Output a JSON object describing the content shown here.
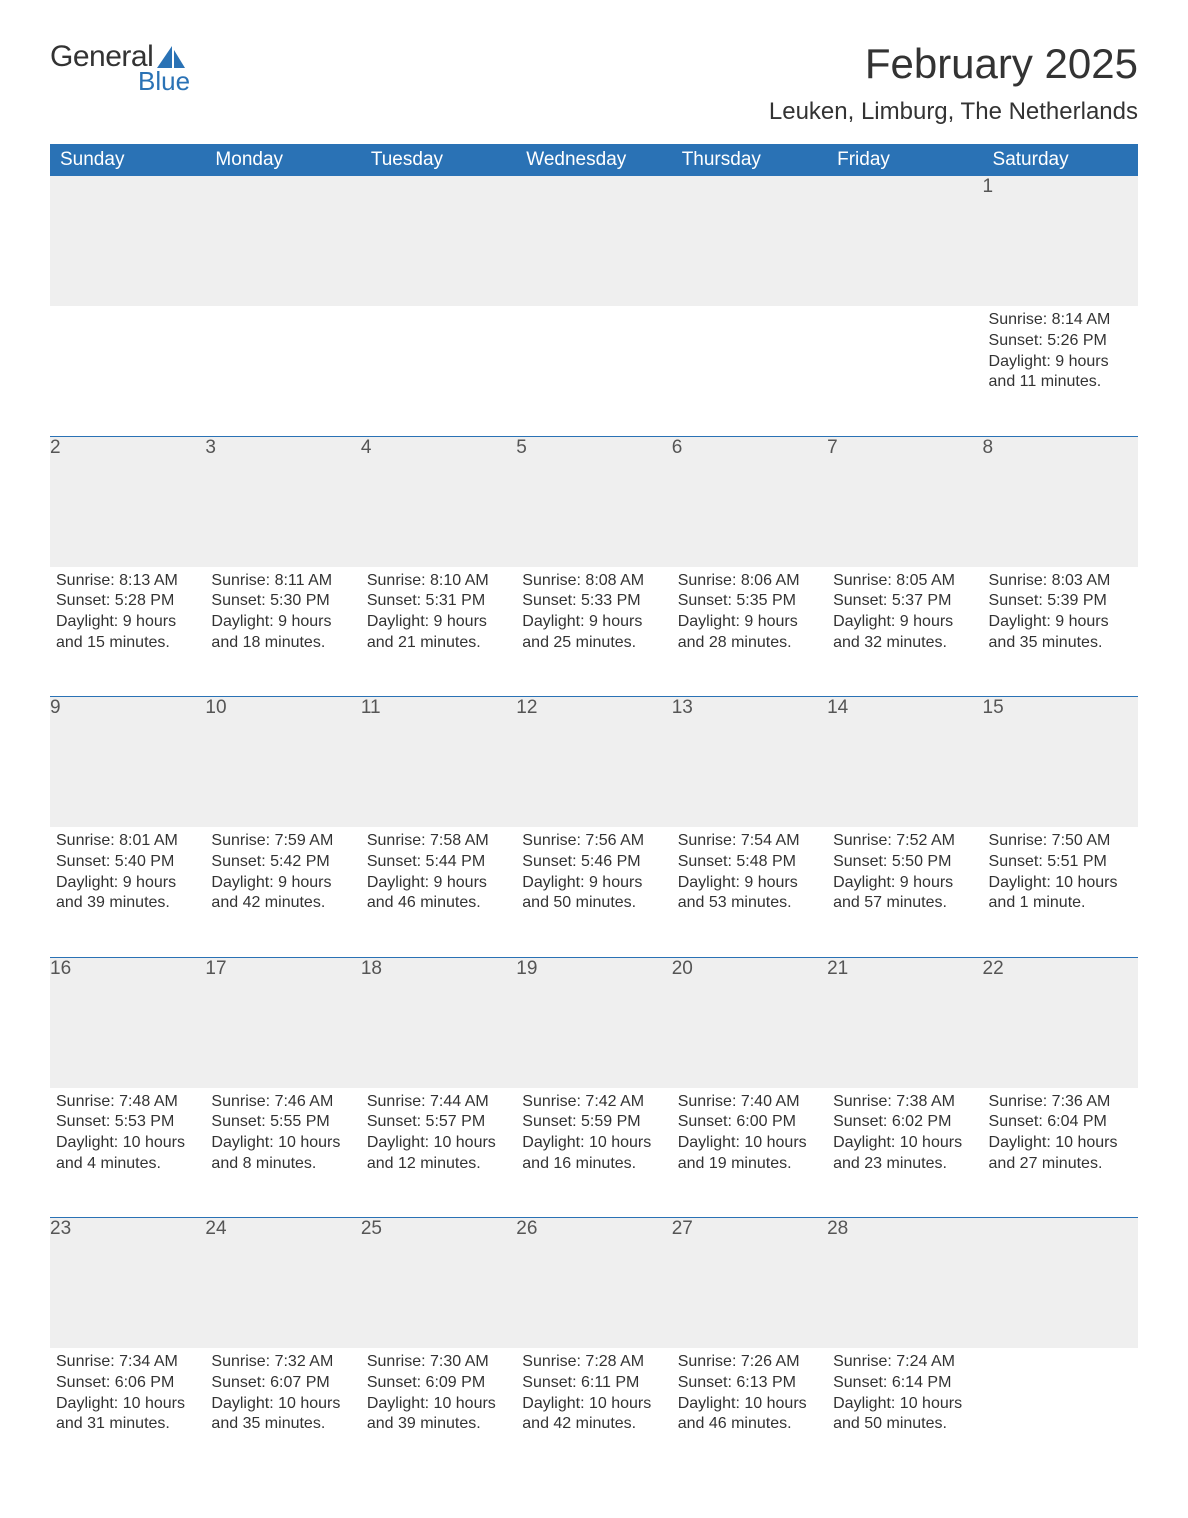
{
  "logo": {
    "text_general": "General",
    "text_blue": "Blue",
    "sail_color": "#2a72b5"
  },
  "title": "February 2025",
  "location": "Leuken, Limburg, The Netherlands",
  "colors": {
    "header_bg": "#2a72b5",
    "header_text": "#ffffff",
    "daynum_bg": "#efefef",
    "text": "#333333",
    "rule": "#2a72b5",
    "page_bg": "#ffffff"
  },
  "weekdays": [
    "Sunday",
    "Monday",
    "Tuesday",
    "Wednesday",
    "Thursday",
    "Friday",
    "Saturday"
  ],
  "first_weekday_index": 6,
  "days": [
    {
      "n": 1,
      "sunrise": "8:14 AM",
      "sunset": "5:26 PM",
      "daylight": "9 hours and 11 minutes."
    },
    {
      "n": 2,
      "sunrise": "8:13 AM",
      "sunset": "5:28 PM",
      "daylight": "9 hours and 15 minutes."
    },
    {
      "n": 3,
      "sunrise": "8:11 AM",
      "sunset": "5:30 PM",
      "daylight": "9 hours and 18 minutes."
    },
    {
      "n": 4,
      "sunrise": "8:10 AM",
      "sunset": "5:31 PM",
      "daylight": "9 hours and 21 minutes."
    },
    {
      "n": 5,
      "sunrise": "8:08 AM",
      "sunset": "5:33 PM",
      "daylight": "9 hours and 25 minutes."
    },
    {
      "n": 6,
      "sunrise": "8:06 AM",
      "sunset": "5:35 PM",
      "daylight": "9 hours and 28 minutes."
    },
    {
      "n": 7,
      "sunrise": "8:05 AM",
      "sunset": "5:37 PM",
      "daylight": "9 hours and 32 minutes."
    },
    {
      "n": 8,
      "sunrise": "8:03 AM",
      "sunset": "5:39 PM",
      "daylight": "9 hours and 35 minutes."
    },
    {
      "n": 9,
      "sunrise": "8:01 AM",
      "sunset": "5:40 PM",
      "daylight": "9 hours and 39 minutes."
    },
    {
      "n": 10,
      "sunrise": "7:59 AM",
      "sunset": "5:42 PM",
      "daylight": "9 hours and 42 minutes."
    },
    {
      "n": 11,
      "sunrise": "7:58 AM",
      "sunset": "5:44 PM",
      "daylight": "9 hours and 46 minutes."
    },
    {
      "n": 12,
      "sunrise": "7:56 AM",
      "sunset": "5:46 PM",
      "daylight": "9 hours and 50 minutes."
    },
    {
      "n": 13,
      "sunrise": "7:54 AM",
      "sunset": "5:48 PM",
      "daylight": "9 hours and 53 minutes."
    },
    {
      "n": 14,
      "sunrise": "7:52 AM",
      "sunset": "5:50 PM",
      "daylight": "9 hours and 57 minutes."
    },
    {
      "n": 15,
      "sunrise": "7:50 AM",
      "sunset": "5:51 PM",
      "daylight": "10 hours and 1 minute."
    },
    {
      "n": 16,
      "sunrise": "7:48 AM",
      "sunset": "5:53 PM",
      "daylight": "10 hours and 4 minutes."
    },
    {
      "n": 17,
      "sunrise": "7:46 AM",
      "sunset": "5:55 PM",
      "daylight": "10 hours and 8 minutes."
    },
    {
      "n": 18,
      "sunrise": "7:44 AM",
      "sunset": "5:57 PM",
      "daylight": "10 hours and 12 minutes."
    },
    {
      "n": 19,
      "sunrise": "7:42 AM",
      "sunset": "5:59 PM",
      "daylight": "10 hours and 16 minutes."
    },
    {
      "n": 20,
      "sunrise": "7:40 AM",
      "sunset": "6:00 PM",
      "daylight": "10 hours and 19 minutes."
    },
    {
      "n": 21,
      "sunrise": "7:38 AM",
      "sunset": "6:02 PM",
      "daylight": "10 hours and 23 minutes."
    },
    {
      "n": 22,
      "sunrise": "7:36 AM",
      "sunset": "6:04 PM",
      "daylight": "10 hours and 27 minutes."
    },
    {
      "n": 23,
      "sunrise": "7:34 AM",
      "sunset": "6:06 PM",
      "daylight": "10 hours and 31 minutes."
    },
    {
      "n": 24,
      "sunrise": "7:32 AM",
      "sunset": "6:07 PM",
      "daylight": "10 hours and 35 minutes."
    },
    {
      "n": 25,
      "sunrise": "7:30 AM",
      "sunset": "6:09 PM",
      "daylight": "10 hours and 39 minutes."
    },
    {
      "n": 26,
      "sunrise": "7:28 AM",
      "sunset": "6:11 PM",
      "daylight": "10 hours and 42 minutes."
    },
    {
      "n": 27,
      "sunrise": "7:26 AM",
      "sunset": "6:13 PM",
      "daylight": "10 hours and 46 minutes."
    },
    {
      "n": 28,
      "sunrise": "7:24 AM",
      "sunset": "6:14 PM",
      "daylight": "10 hours and 50 minutes."
    }
  ],
  "labels": {
    "sunrise": "Sunrise:",
    "sunset": "Sunset:",
    "daylight": "Daylight:"
  }
}
